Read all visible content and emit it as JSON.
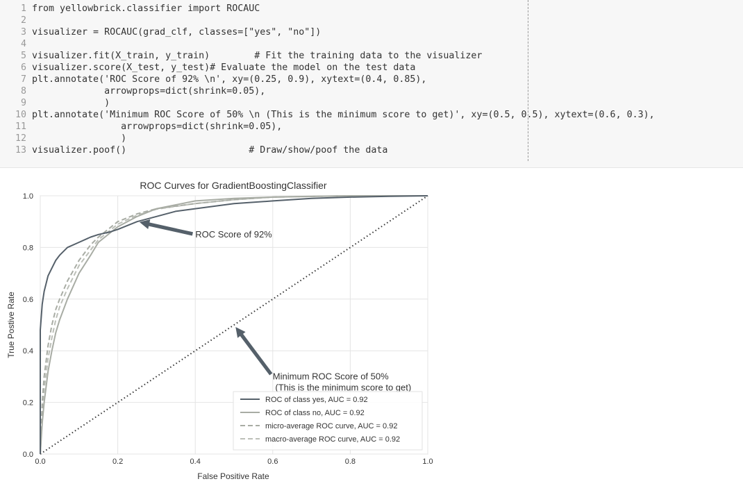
{
  "code_cell": {
    "lines": [
      {
        "num": "1",
        "text": "from yellowbrick.classifier import ROCAUC"
      },
      {
        "num": "2",
        "text": ""
      },
      {
        "num": "3",
        "text": "visualizer = ROCAUC(grad_clf, classes=[\"yes\", \"no\"])"
      },
      {
        "num": "4",
        "text": ""
      },
      {
        "num": "5",
        "text": "visualizer.fit(X_train, y_train)        # Fit the training data to the visualizer"
      },
      {
        "num": "6",
        "text": "visualizer.score(X_test, y_test)# Evaluate the model on the test data"
      },
      {
        "num": "7",
        "text": "plt.annotate('ROC Score of 92% \\n', xy=(0.25, 0.9), xytext=(0.4, 0.85),"
      },
      {
        "num": "8",
        "text": "             arrowprops=dict(shrink=0.05),"
      },
      {
        "num": "9",
        "text": "             )"
      },
      {
        "num": "10",
        "text": "plt.annotate('Minimum ROC Score of 50% \\n (This is the minimum score to get)', xy=(0.5, 0.5), xytext=(0.6, 0.3),"
      },
      {
        "num": "11",
        "text": "                arrowprops=dict(shrink=0.05),"
      },
      {
        "num": "12",
        "text": "                )"
      },
      {
        "num": "13",
        "text": "visualizer.poof()                      # Draw/show/poof the data"
      }
    ]
  },
  "chart_data": {
    "type": "line",
    "title": "ROC Curves for GradientBoostingClassifier",
    "xlabel": "False Positive Rate",
    "ylabel": "True Postive Rate",
    "xlim": [
      0,
      1
    ],
    "ylim": [
      0,
      1
    ],
    "xticks": [
      "0.0",
      "0.2",
      "0.4",
      "0.6",
      "0.8",
      "1.0"
    ],
    "yticks": [
      "0.0",
      "0.2",
      "0.4",
      "0.6",
      "0.8",
      "1.0"
    ],
    "grid": true,
    "legend_position": "lower-right",
    "series": [
      {
        "name": "ROC of class yes, AUC = 0.92",
        "style": "solid",
        "color": "#55606a",
        "width": 2,
        "x": [
          0,
          0.0,
          0.005,
          0.01,
          0.015,
          0.02,
          0.03,
          0.04,
          0.05,
          0.07,
          0.1,
          0.13,
          0.15,
          0.18,
          0.2,
          0.25,
          0.3,
          0.35,
          0.4,
          0.5,
          0.6,
          0.7,
          0.8,
          0.9,
          1.0
        ],
        "y": [
          0,
          0.48,
          0.58,
          0.63,
          0.66,
          0.69,
          0.72,
          0.75,
          0.77,
          0.8,
          0.82,
          0.84,
          0.85,
          0.86,
          0.87,
          0.9,
          0.92,
          0.94,
          0.95,
          0.97,
          0.98,
          0.99,
          0.995,
          0.998,
          1.0
        ]
      },
      {
        "name": "ROC of class no, AUC = 0.92",
        "style": "solid",
        "color": "#a8aca4",
        "width": 2,
        "x": [
          0,
          0.005,
          0.01,
          0.02,
          0.03,
          0.04,
          0.05,
          0.07,
          0.1,
          0.13,
          0.15,
          0.2,
          0.25,
          0.3,
          0.4,
          0.5,
          0.6,
          0.7,
          0.8,
          1.0
        ],
        "y": [
          0,
          0.12,
          0.2,
          0.32,
          0.4,
          0.47,
          0.52,
          0.6,
          0.7,
          0.77,
          0.82,
          0.88,
          0.92,
          0.95,
          0.98,
          0.99,
          0.995,
          0.998,
          1.0,
          1.0
        ]
      },
      {
        "name": "micro-average ROC curve, AUC = 0.92",
        "style": "dashed",
        "color": "#a8aca4",
        "width": 2,
        "x": [
          0,
          0.005,
          0.01,
          0.02,
          0.03,
          0.04,
          0.05,
          0.07,
          0.1,
          0.13,
          0.15,
          0.2,
          0.25,
          0.3,
          0.4,
          0.5,
          0.6,
          0.8,
          1.0
        ],
        "y": [
          0,
          0.2,
          0.3,
          0.42,
          0.5,
          0.56,
          0.6,
          0.67,
          0.75,
          0.81,
          0.84,
          0.9,
          0.93,
          0.95,
          0.97,
          0.985,
          0.995,
          1.0,
          1.0
        ]
      },
      {
        "name": "macro-average ROC curve, AUC = 0.92",
        "style": "dashed",
        "color": "#bcbfb8",
        "width": 2,
        "x": [
          0,
          0.005,
          0.01,
          0.02,
          0.03,
          0.04,
          0.05,
          0.07,
          0.1,
          0.13,
          0.15,
          0.2,
          0.25,
          0.3,
          0.4,
          0.5,
          0.6,
          0.8,
          1.0
        ],
        "y": [
          0,
          0.16,
          0.25,
          0.37,
          0.45,
          0.52,
          0.57,
          0.64,
          0.73,
          0.79,
          0.83,
          0.89,
          0.925,
          0.948,
          0.97,
          0.985,
          0.995,
          1.0,
          1.0
        ]
      }
    ],
    "diagonal": {
      "x": [
        0,
        1
      ],
      "y": [
        0,
        1
      ],
      "style": "dotted",
      "color": "#333333"
    },
    "annotations": [
      {
        "text_lines": [
          "ROC Score of 92%"
        ],
        "xy": [
          0.25,
          0.9
        ],
        "xytext": [
          0.4,
          0.85
        ]
      },
      {
        "text_lines": [
          "Minimum ROC Score of 50%",
          " (This is the minimum score to get)"
        ],
        "xy": [
          0.5,
          0.5
        ],
        "xytext": [
          0.6,
          0.3
        ]
      }
    ]
  }
}
